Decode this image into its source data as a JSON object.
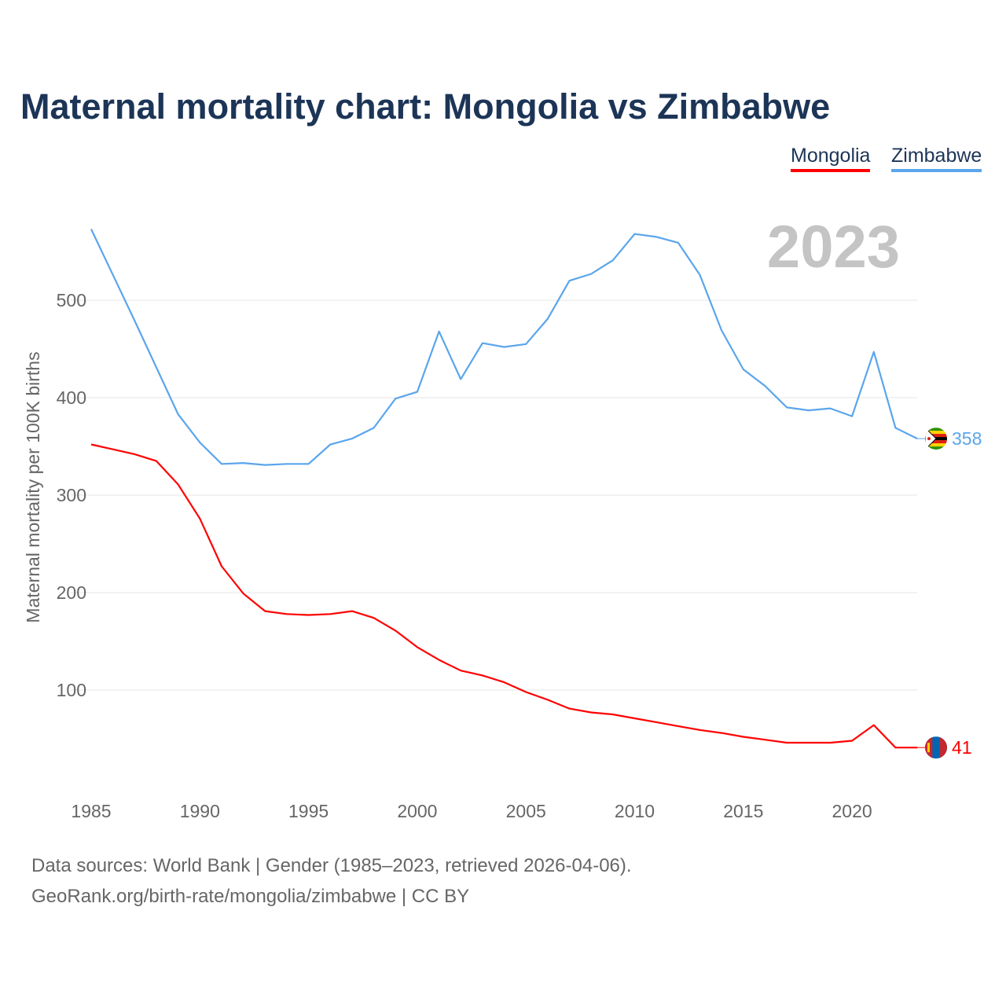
{
  "title": "Maternal mortality chart: Mongolia vs Zimbabwe",
  "legend": [
    "Mongolia",
    "Zimbabwe"
  ],
  "year_label": "2023",
  "footer": {
    "line1": "Data sources: World Bank | Gender (1985–2023, retrieved 2026-04-06).",
    "line2": "GeoRank.org/birth-rate/mongolia/zimbabwe | CC BY"
  },
  "chart_data": {
    "type": "line",
    "title": "Maternal mortality chart: Mongolia vs Zimbabwe",
    "xlabel": "",
    "ylabel": "Maternal mortality per 100K births",
    "x": [
      1985,
      1986,
      1987,
      1988,
      1989,
      1990,
      1991,
      1992,
      1993,
      1994,
      1995,
      1996,
      1997,
      1998,
      1999,
      2000,
      2001,
      2002,
      2003,
      2004,
      2005,
      2006,
      2007,
      2008,
      2009,
      2010,
      2011,
      2012,
      2013,
      2014,
      2015,
      2016,
      2017,
      2018,
      2019,
      2020,
      2021,
      2022,
      2023
    ],
    "xticks": [
      "1985",
      "1990",
      "1995",
      "2000",
      "2005",
      "2010",
      "2015",
      "2020"
    ],
    "yticks": [
      "100",
      "200",
      "300",
      "400",
      "500"
    ],
    "xlim": [
      1985,
      2023
    ],
    "ylim": [
      0,
      600
    ],
    "grid": true,
    "legend_position": "top-right",
    "series": [
      {
        "name": "Mongolia",
        "color": "#ff0000",
        "end_label": "41",
        "values": [
          352,
          347,
          342,
          335,
          311,
          276,
          227,
          199,
          181,
          178,
          177,
          178,
          181,
          174,
          161,
          144,
          131,
          120,
          115,
          108,
          98,
          90,
          81,
          77,
          75,
          71,
          67,
          63,
          59,
          56,
          52,
          49,
          46,
          46,
          46,
          48,
          64,
          41,
          41
        ]
      },
      {
        "name": "Zimbabwe",
        "color": "#5aa5ec",
        "end_label": "358",
        "values": [
          573,
          526,
          479,
          431,
          383,
          354,
          332,
          333,
          331,
          332,
          332,
          352,
          358,
          369,
          399,
          406,
          468,
          419,
          456,
          452,
          455,
          481,
          520,
          527,
          541,
          568,
          565,
          559,
          526,
          469,
          429,
          412,
          390,
          387,
          389,
          381,
          447,
          369,
          358
        ]
      }
    ]
  }
}
